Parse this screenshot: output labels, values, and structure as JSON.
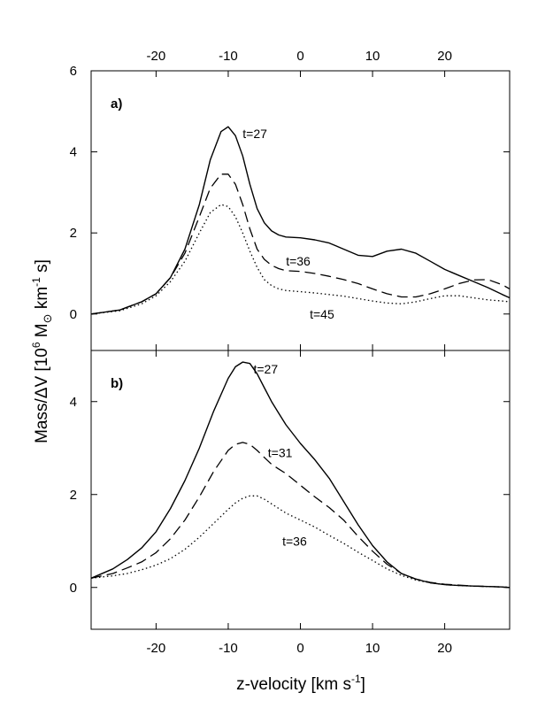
{
  "chart_data": {
    "type": "line",
    "xlabel": "z-velocity [km s",
    "xlabel_sup": "-1",
    "xlabel_end": "]",
    "ylabel_main": "Mass/ΔV [10",
    "ylabel_sup1": "6",
    "ylabel_mid": " M",
    "ylabel_sun": "⊙",
    "ylabel_unit": " km",
    "ylabel_sup2": "-1",
    "ylabel_end": " s]",
    "xlim": [
      -29,
      29
    ],
    "xticks": [
      -20,
      -10,
      0,
      10,
      20
    ],
    "xtick_labels": [
      "-20",
      "-10",
      "0",
      "10",
      "20"
    ],
    "panels": [
      {
        "label": "a)",
        "ylim": [
          -0.9,
          6
        ],
        "yticks": [
          0,
          2,
          4,
          6
        ],
        "ytick_labels": [
          "0",
          "2",
          "4",
          "6"
        ],
        "series": [
          {
            "name": "t=27",
            "style": "solid",
            "x": [
              -29,
              -25,
              -22,
              -20,
              -18,
              -16,
              -14,
              -12.5,
              -11,
              -10,
              -9,
              -8,
              -7,
              -6,
              -5,
              -4,
              -3,
              -2,
              0,
              2,
              4,
              6,
              8,
              10,
              12,
              14,
              16,
              18,
              20,
              22,
              24,
              26,
              28,
              29
            ],
            "y": [
              0.0,
              0.1,
              0.3,
              0.5,
              0.9,
              1.6,
              2.7,
              3.8,
              4.5,
              4.62,
              4.4,
              3.9,
              3.2,
              2.6,
              2.25,
              2.05,
              1.95,
              1.9,
              1.88,
              1.83,
              1.75,
              1.6,
              1.45,
              1.42,
              1.55,
              1.6,
              1.5,
              1.3,
              1.1,
              0.95,
              0.8,
              0.65,
              0.48,
              0.4
            ]
          },
          {
            "name": "t=36",
            "style": "dashed",
            "x": [
              -29,
              -25,
              -22,
              -20,
              -18,
              -16,
              -14,
              -12.5,
              -11,
              -10,
              -9,
              -8,
              -7,
              -6,
              -5,
              -4,
              -3,
              -2,
              0,
              2,
              4,
              6,
              8,
              10,
              12,
              14,
              16,
              18,
              20,
              22,
              24,
              26,
              28,
              29
            ],
            "y": [
              0.0,
              0.1,
              0.3,
              0.5,
              0.9,
              1.5,
              2.4,
              3.1,
              3.45,
              3.45,
              3.2,
              2.7,
              2.1,
              1.6,
              1.35,
              1.2,
              1.12,
              1.07,
              1.05,
              1.0,
              0.93,
              0.85,
              0.75,
              0.62,
              0.5,
              0.42,
              0.42,
              0.5,
              0.62,
              0.75,
              0.84,
              0.85,
              0.72,
              0.62
            ]
          },
          {
            "name": "t=45",
            "style": "dotted",
            "x": [
              -29,
              -25,
              -22,
              -20,
              -18,
              -16,
              -14,
              -12.5,
              -11,
              -10,
              -9,
              -8,
              -7,
              -6,
              -5,
              -4,
              -3,
              -2,
              0,
              2,
              4,
              6,
              8,
              10,
              12,
              14,
              16,
              18,
              20,
              22,
              24,
              26,
              28,
              29
            ],
            "y": [
              0.0,
              0.08,
              0.25,
              0.45,
              0.8,
              1.3,
              2.0,
              2.5,
              2.7,
              2.65,
              2.4,
              2.0,
              1.55,
              1.15,
              0.85,
              0.7,
              0.62,
              0.58,
              0.55,
              0.52,
              0.48,
              0.44,
              0.38,
              0.32,
              0.27,
              0.25,
              0.3,
              0.38,
              0.45,
              0.45,
              0.4,
              0.35,
              0.32,
              0.3
            ]
          }
        ],
        "annotations": [
          {
            "text": "t=27",
            "x": -8,
            "y": 4.45
          },
          {
            "text": "t=36",
            "x": -2,
            "y": 1.3
          },
          {
            "text": "t=45",
            "x": 1.3,
            "y": 0.0
          }
        ]
      },
      {
        "label": "b)",
        "ylim": [
          -0.9,
          5.1
        ],
        "yticks": [
          0,
          2,
          4
        ],
        "ytick_labels": [
          "0",
          "2",
          "4"
        ],
        "series": [
          {
            "name": "t=27",
            "style": "solid",
            "x": [
              -29,
              -26,
              -24,
              -22,
              -20,
              -18,
              -16,
              -14,
              -12,
              -10,
              -9,
              -8,
              -7,
              -6,
              -5,
              -4,
              -3,
              -2,
              0,
              2,
              4,
              6,
              8,
              10,
              12,
              14,
              16,
              18,
              20,
              22,
              24,
              26,
              28,
              29
            ],
            "y": [
              0.2,
              0.4,
              0.6,
              0.85,
              1.2,
              1.7,
              2.3,
              3.0,
              3.8,
              4.5,
              4.75,
              4.85,
              4.82,
              4.6,
              4.3,
              4.0,
              3.75,
              3.5,
              3.1,
              2.75,
              2.35,
              1.85,
              1.35,
              0.9,
              0.55,
              0.3,
              0.18,
              0.1,
              0.06,
              0.04,
              0.03,
              0.02,
              0.01,
              0.0
            ]
          },
          {
            "name": "t=31",
            "style": "dashed",
            "x": [
              -29,
              -26,
              -24,
              -22,
              -20,
              -18,
              -16,
              -14,
              -12,
              -10,
              -9,
              -8,
              -7,
              -6,
              -5,
              -4,
              -3,
              -2,
              0,
              2,
              4,
              6,
              8,
              10,
              12,
              14,
              16,
              18,
              20,
              22,
              24,
              26,
              28,
              29
            ],
            "y": [
              0.2,
              0.3,
              0.42,
              0.55,
              0.75,
              1.05,
              1.45,
              1.95,
              2.5,
              2.95,
              3.08,
              3.12,
              3.08,
              2.95,
              2.8,
              2.65,
              2.55,
              2.45,
              2.2,
              1.95,
              1.72,
              1.45,
              1.1,
              0.78,
              0.5,
              0.3,
              0.18,
              0.11,
              0.07,
              0.05,
              0.03,
              0.02,
              0.01,
              0.0
            ]
          },
          {
            "name": "t=36",
            "style": "dotted",
            "x": [
              -29,
              -26,
              -24,
              -22,
              -20,
              -18,
              -16,
              -14,
              -12,
              -10,
              -9,
              -8,
              -7,
              -6,
              -5,
              -4,
              -3,
              -2,
              0,
              2,
              4,
              6,
              8,
              10,
              12,
              14,
              16,
              18,
              20,
              22,
              24,
              26,
              28,
              29
            ],
            "y": [
              0.2,
              0.25,
              0.3,
              0.38,
              0.48,
              0.62,
              0.82,
              1.08,
              1.38,
              1.68,
              1.82,
              1.92,
              1.97,
              1.97,
              1.9,
              1.8,
              1.7,
              1.6,
              1.45,
              1.3,
              1.12,
              0.95,
              0.76,
              0.58,
              0.4,
              0.26,
              0.16,
              0.1,
              0.06,
              0.04,
              0.03,
              0.02,
              0.01,
              0.0
            ]
          }
        ],
        "annotations": [
          {
            "text": "t=27",
            "x": -6.5,
            "y": 4.7
          },
          {
            "text": "t=31",
            "x": -4.5,
            "y": 2.9
          },
          {
            "text": "t=36",
            "x": -2.5,
            "y": 1.0
          }
        ]
      }
    ]
  }
}
